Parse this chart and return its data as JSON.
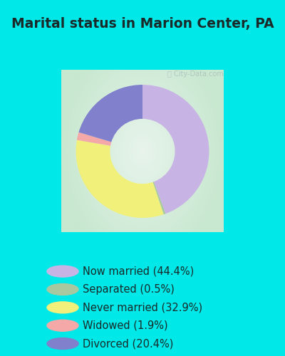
{
  "title": "Marital status in Marion Center, PA",
  "slices": [
    44.4,
    0.5,
    32.9,
    1.9,
    20.4
  ],
  "labels": [
    "Now married (44.4%)",
    "Separated (0.5%)",
    "Never married (32.9%)",
    "Widowed (1.9%)",
    "Divorced (20.4%)"
  ],
  "colors": [
    "#c8b4e4",
    "#a8c8a0",
    "#f0f07a",
    "#f4a8a8",
    "#8080cc"
  ],
  "bg_cyan": "#00e8e8",
  "chart_bg_outer": "#c8e8d0",
  "chart_bg_inner": "#e8f4ec",
  "title_color": "#1a2a2a",
  "title_fontsize": 13.5,
  "donut_width": 0.42,
  "start_angle": 90,
  "legend_fontsize": 10.5
}
